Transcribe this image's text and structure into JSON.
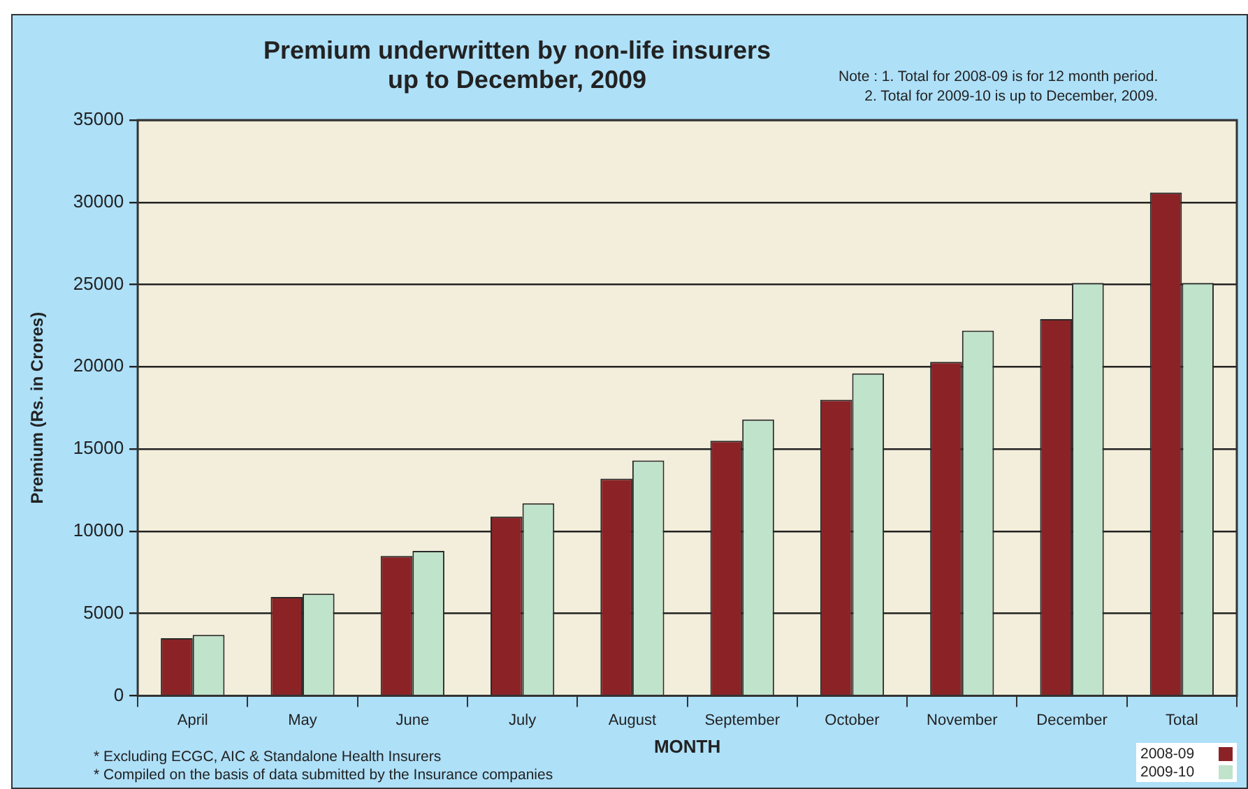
{
  "chart_data": {
    "type": "bar",
    "title": "Premium underwritten by non-life insurers\nup to December, 2009",
    "xlabel": "MONTH",
    "ylabel": "Premium (Rs. in Crores)",
    "categories": [
      "April",
      "May",
      "June",
      "July",
      "August",
      "September",
      "October",
      "November",
      "December",
      "Total"
    ],
    "series": [
      {
        "name": "2008-09",
        "color": "#8b2326",
        "values": [
          3500,
          6000,
          8500,
          10900,
          13200,
          15500,
          18000,
          20300,
          22900,
          30600
        ]
      },
      {
        "name": "2009-10",
        "color": "#c0e3cb",
        "values": [
          3700,
          6200,
          8800,
          11700,
          14300,
          16800,
          19600,
          22200,
          25100,
          25100
        ]
      }
    ],
    "ylim": [
      0,
      35000
    ],
    "yticks": [
      0,
      5000,
      10000,
      15000,
      20000,
      25000,
      30000,
      35000
    ],
    "grid": "y",
    "legend": "bottom right",
    "annotations": [
      "Note :  1. Total for 2008-09 is for 12 month period.",
      "2. Total for 2009-10 is up to December, 2009.",
      "* Excluding ECGC, AIC & Standalone Health Insurers",
      "* Compiled on the basis of data submitted by the Insurance companies"
    ]
  }
}
